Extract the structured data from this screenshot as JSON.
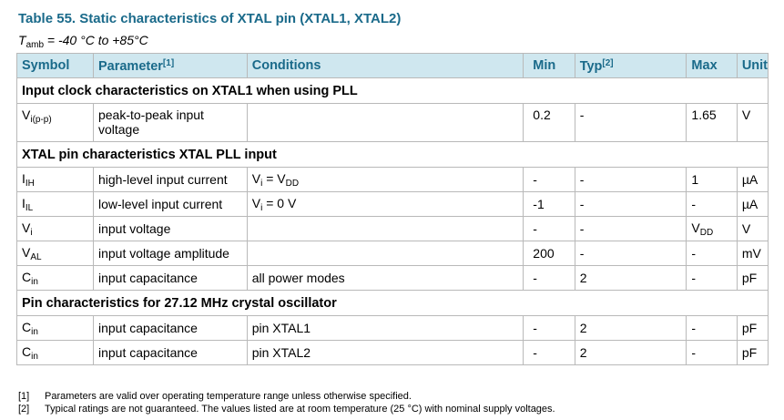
{
  "title": "Table 55.  Static characteristics of XTAL pin (XTAL1, XTAL2)",
  "condition": {
    "symbol": "T",
    "sub": "amb",
    "text": " = -40 °C to +85°C"
  },
  "columns": {
    "symbol": "Symbol",
    "parameter": "Parameter",
    "parameter_ref": "[1]",
    "conditions": "Conditions",
    "min": "Min",
    "typ": "Typ",
    "typ_ref": "[2]",
    "max": "Max",
    "unit": "Unit"
  },
  "sections": {
    "s1": "Input clock characteristics on XTAL1 when using PLL",
    "s2": "XTAL pin characteristics XTAL PLL input",
    "s3": "Pin characteristics for 27.12 MHz crystal oscillator"
  },
  "rows": [
    {
      "sym": "V",
      "sub": "i(p-p)",
      "param": "peak-to-peak input voltage",
      "cond": "",
      "cond_sub": "",
      "min": "0.2",
      "typ": "-",
      "max": "1.65",
      "max_sub": "",
      "unit": "V"
    },
    {
      "sym": "I",
      "sub": "IH",
      "param": "high-level input current",
      "cond": "V",
      "cond_sub": "i",
      "cond_rest": " = V",
      "cond_sub2": "DD",
      "min": "-",
      "typ": "-",
      "max": "1",
      "max_sub": "",
      "unit": "µA"
    },
    {
      "sym": "I",
      "sub": "IL",
      "param": "low-level input current",
      "cond": "V",
      "cond_sub": "i",
      "cond_rest": " = 0 V",
      "cond_sub2": "",
      "min": "-1",
      "typ": "-",
      "max": "-",
      "max_sub": "",
      "unit": "µA"
    },
    {
      "sym": "V",
      "sub": "i",
      "param": "input voltage",
      "cond": "",
      "cond_sub": "",
      "min": "-",
      "typ": "-",
      "max": "V",
      "max_sub": "DD",
      "unit": "V"
    },
    {
      "sym": "V",
      "sub": "AL",
      "param": "input voltage amplitude",
      "cond": "",
      "cond_sub": "",
      "min": "200",
      "typ": "-",
      "max": "-",
      "max_sub": "",
      "unit": "mV"
    },
    {
      "sym": "C",
      "sub": "in",
      "param": "input capacitance",
      "cond": "all power modes",
      "cond_sub": "",
      "min": "-",
      "typ": "2",
      "max": "-",
      "max_sub": "",
      "unit": "pF"
    },
    {
      "sym": "C",
      "sub": "in",
      "param": "input capacitance",
      "cond": "pin XTAL1",
      "cond_sub": "",
      "min": "-",
      "typ": "2",
      "max": "-",
      "max_sub": "",
      "unit": "pF"
    },
    {
      "sym": "C",
      "sub": "in",
      "param": "input capacitance",
      "cond": "pin XTAL2",
      "cond_sub": "",
      "min": "-",
      "typ": "2",
      "max": "-",
      "max_sub": "",
      "unit": "pF"
    }
  ],
  "notes": [
    {
      "num": "[1]",
      "text": "Parameters are valid over operating temperature range unless otherwise specified."
    },
    {
      "num": "[2]",
      "text": "Typical ratings are not guaranteed. The values listed are at room temperature (25 °C) with nominal supply voltages."
    }
  ]
}
